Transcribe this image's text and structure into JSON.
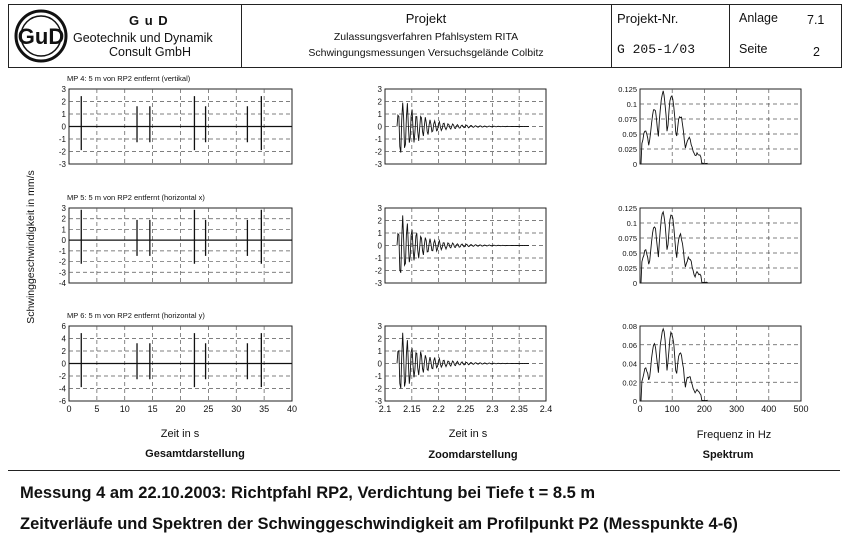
{
  "header": {
    "logo_text": "GuD",
    "company_short": "G u D",
    "company_line1": "Geotechnik und Dynamik",
    "company_line2": "Consult GmbH",
    "project_label": "Projekt",
    "project_line1": "Zulassungsverfahren Pfahlsystem RITA",
    "project_line2": "Schwingungsmessungen Versuchsgelände Colbitz",
    "projnr_label": "Projekt-Nr.",
    "projnr_value": "G 205-1/03",
    "anlage_label": "Anlage",
    "anlage_value": "7.1",
    "seite_label": "Seite",
    "seite_value": "2"
  },
  "figure": {
    "y_axis_label": "Schwinggeschwindigkeit in mm/s",
    "rows": [
      {
        "title": "MP 4: 5 m von RP2 entfernt (vertikal)",
        "full_ticks": [
          "3",
          "2",
          "1",
          "0",
          "-1",
          "-2",
          "-3"
        ],
        "zoom_ticks": [
          "3",
          "2",
          "1",
          "0",
          "-1",
          "-2",
          "-3"
        ],
        "spec_ticks": [
          "0.125",
          "0.1",
          "0.075",
          "0.05",
          "0.025",
          "0"
        ]
      },
      {
        "title": "MP 5: 5 m von RP2 entfernt (horizontal x)",
        "full_ticks": [
          "3",
          "2",
          "1",
          "0",
          "-1",
          "-2",
          "-3",
          "-4"
        ],
        "zoom_ticks": [
          "3",
          "2",
          "1",
          "0",
          "-1",
          "-2",
          "-3"
        ],
        "spec_ticks": [
          "0.125",
          "0.1",
          "0.075",
          "0.05",
          "0.025",
          "0"
        ]
      },
      {
        "title": "MP 6: 5 m von RP2 entfernt (horizontal y)",
        "full_ticks": [
          "6",
          "4",
          "2",
          "0",
          "-2",
          "-4",
          "-6"
        ],
        "zoom_ticks": [
          "3",
          "2",
          "1",
          "0",
          "-1",
          "-2",
          "-3"
        ],
        "spec_ticks": [
          "0.08",
          "0.06",
          "0.04",
          "0.02",
          "0"
        ]
      }
    ],
    "full_x_ticks": [
      "0",
      "5",
      "10",
      "15",
      "20",
      "25",
      "30",
      "35",
      "40"
    ],
    "zoom_x_ticks": [
      "2.1",
      "2.15",
      "2.2",
      "2.25",
      "2.3",
      "2.35",
      "2.4"
    ],
    "spec_x_ticks": [
      "0",
      "100",
      "200",
      "300",
      "400",
      "500"
    ],
    "full_xlabel": "Zeit in s",
    "zoom_xlabel": "Zeit in s",
    "spec_xlabel": "Frequenz in Hz",
    "full_caption": "Gesamtdarstellung",
    "zoom_caption": "Zoomdarstellung",
    "spec_caption": "Spektrum"
  },
  "footer": {
    "line1": "Messung 4 am 22.10.2003: Richtpfahl RP2, Verdichtung bei Tiefe t = 8.5 m",
    "line2": "Zeitverläufe und Spektren der Schwinggeschwindigkeit am Profilpunkt P2 (Messpunkte 4-6)"
  }
}
